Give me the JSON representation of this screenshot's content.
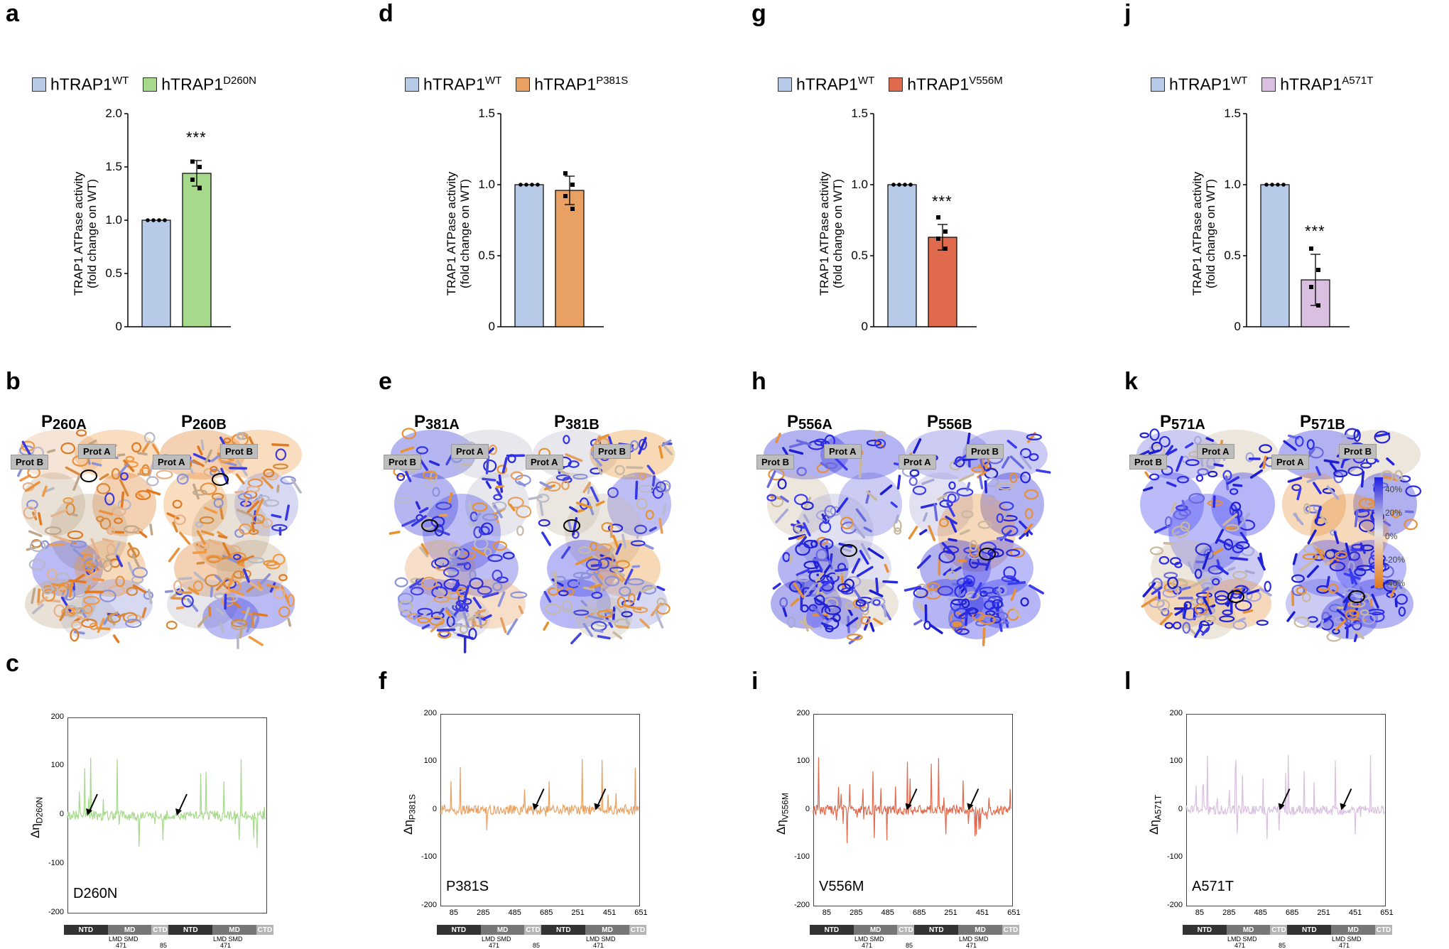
{
  "panels": {
    "a": "a",
    "b": "b",
    "c": "c",
    "d": "d",
    "e": "e",
    "f": "f",
    "g": "g",
    "h": "h",
    "i": "i",
    "j": "j",
    "k": "k",
    "l": "l"
  },
  "colors": {
    "wt": "#b7cbe9",
    "D260N": "#a7d98d",
    "P381S": "#e9a163",
    "V556M": "#e06a4e",
    "A571T": "#d9bfe0"
  },
  "bar_charts": [
    {
      "id": "a",
      "wt_label": "hTRAP1",
      "wt_sup": "WT",
      "mut_label": "hTRAP1",
      "mut_sup": "D260N",
      "ylabel1": "TRAP1 ATPase activity",
      "ylabel2": "(fold change on WT)",
      "sig": "***",
      "ticks": [
        "0",
        "0.5",
        "1.0",
        "1.5",
        "2.0"
      ]
    },
    {
      "id": "d",
      "wt_label": "hTRAP1",
      "wt_sup": "WT",
      "mut_label": "hTRAP1",
      "mut_sup": "P381S",
      "ylabel1": "TRAP1 ATPase activity",
      "ylabel2": "(fold change on WT)",
      "sig": "",
      "ticks": [
        "0",
        "0.5",
        "1.0",
        "1.5"
      ]
    },
    {
      "id": "g",
      "wt_label": "hTRAP1",
      "wt_sup": "WT",
      "mut_label": "hTRAP1",
      "mut_sup": "V556M",
      "ylabel1": "TRAP1 ATPase activity",
      "ylabel2": "(fold change on WT)",
      "sig": "***",
      "ticks": [
        "0",
        "0.5",
        "1.0",
        "1.5"
      ]
    },
    {
      "id": "j",
      "wt_label": "hTRAP1",
      "wt_sup": "WT",
      "mut_label": "hTRAP1",
      "mut_sup": "A571T",
      "ylabel1": "TRAP1 ATPase activity",
      "ylabel2": "(fold change on WT)",
      "sig": "***",
      "ticks": [
        "0",
        "0.5",
        "1.0",
        "1.5"
      ]
    }
  ],
  "chart_data": [
    {
      "type": "bar",
      "id": "a",
      "categories": [
        "hTRAP1WT",
        "hTRAP1D260N"
      ],
      "values": [
        1.0,
        1.44
      ],
      "errors": [
        0,
        0.12
      ],
      "points": [
        [
          1,
          1,
          1,
          1
        ],
        [
          1.55,
          1.5,
          1.38,
          1.3
        ]
      ],
      "ylim": [
        0,
        2.0
      ],
      "ylabel": "TRAP1 ATPase activity (fold change on WT)"
    },
    {
      "type": "bar",
      "id": "d",
      "categories": [
        "hTRAP1WT",
        "hTRAP1P381S"
      ],
      "values": [
        1.0,
        0.96
      ],
      "errors": [
        0,
        0.1
      ],
      "points": [
        [
          1,
          1,
          1,
          1
        ],
        [
          1.08,
          1.0,
          0.92,
          0.83
        ]
      ],
      "ylim": [
        0,
        1.5
      ],
      "ylabel": "TRAP1 ATPase activity (fold change on WT)"
    },
    {
      "type": "bar",
      "id": "g",
      "categories": [
        "hTRAP1WT",
        "hTRAP1V556M"
      ],
      "values": [
        1.0,
        0.63
      ],
      "errors": [
        0,
        0.09
      ],
      "points": [
        [
          1,
          1,
          1,
          1
        ],
        [
          0.77,
          0.67,
          0.62,
          0.55
        ]
      ],
      "ylim": [
        0,
        1.5
      ],
      "ylabel": "TRAP1 ATPase activity (fold change on WT)"
    },
    {
      "type": "bar",
      "id": "j",
      "categories": [
        "hTRAP1WT",
        "hTRAP1A571T"
      ],
      "values": [
        1.0,
        0.33
      ],
      "errors": [
        0,
        0.18
      ],
      "points": [
        [
          1,
          1,
          1,
          1
        ],
        [
          0.55,
          0.4,
          0.28,
          0.15
        ]
      ],
      "ylim": [
        0,
        1.5
      ],
      "ylabel": "TRAP1 ATPase activity (fold change on WT)"
    },
    {
      "type": "line",
      "id": "c",
      "mutation": "D260N",
      "ylabel": "Δη D260N",
      "ylim": [
        -200,
        200
      ]
    },
    {
      "type": "line",
      "id": "f",
      "mutation": "P381S",
      "ylabel": "Δη P381S",
      "ylim": [
        -200,
        200
      ]
    },
    {
      "type": "line",
      "id": "i",
      "mutation": "V556M",
      "ylabel": "Δη V556M",
      "ylim": [
        -200,
        200
      ]
    },
    {
      "type": "line",
      "id": "l",
      "mutation": "A571T",
      "ylabel": "Δη A571T",
      "ylim": [
        -200,
        200
      ]
    }
  ],
  "structures": [
    {
      "id": "b",
      "left": "P",
      "left_sub": "260A",
      "right": "P",
      "right_sub": "260B",
      "protA": "Prot A",
      "protB": "Prot B",
      "scheme": "orange"
    },
    {
      "id": "e",
      "left": "P",
      "left_sub": "381A",
      "right": "P",
      "right_sub": "381B",
      "protA": "Prot A",
      "protB": "Prot B",
      "scheme": "mixed"
    },
    {
      "id": "h",
      "left": "P",
      "left_sub": "556A",
      "right": "P",
      "right_sub": "556B",
      "protA": "Prot A",
      "protB": "Prot B",
      "scheme": "blue"
    },
    {
      "id": "k",
      "left": "P",
      "left_sub": "571A",
      "right": "P",
      "right_sub": "571B",
      "protA": "Prot A",
      "protB": "Prot B",
      "scheme": "blue"
    }
  ],
  "colorbar": {
    "labels": [
      "40%",
      "20%",
      "0%",
      "-20%",
      "-40%"
    ]
  },
  "line_plots": [
    {
      "id": "c",
      "mut": "D260N",
      "eta_sub": "D260N",
      "ticks": [
        "200",
        "100",
        "0",
        "-100",
        "-200"
      ],
      "xticks": []
    },
    {
      "id": "f",
      "mut": "P381S",
      "eta_sub": "P381S",
      "ticks": [
        "200",
        "100",
        "0",
        "-100",
        "-200"
      ],
      "xticks": [
        "85",
        "285",
        "485",
        "685",
        "251",
        "451",
        "651"
      ]
    },
    {
      "id": "i",
      "mut": "V556M",
      "eta_sub": "V556M",
      "ticks": [
        "200",
        "100",
        "0",
        "-100",
        "-200"
      ],
      "xticks": [
        "85",
        "285",
        "485",
        "685",
        "251",
        "451",
        "651"
      ]
    },
    {
      "id": "l",
      "mut": "A571T",
      "eta_sub": "A571T",
      "ticks": [
        "200",
        "100",
        "0",
        "-100",
        "-200"
      ],
      "xticks": [
        "85",
        "285",
        "485",
        "685",
        "251",
        "451",
        "651"
      ]
    }
  ],
  "domains": {
    "ntd": "NTD",
    "md": "MD",
    "ctd": "CTD",
    "lmd": "LMD",
    "smd": "SMD",
    "n471": "471",
    "n85": "85"
  }
}
